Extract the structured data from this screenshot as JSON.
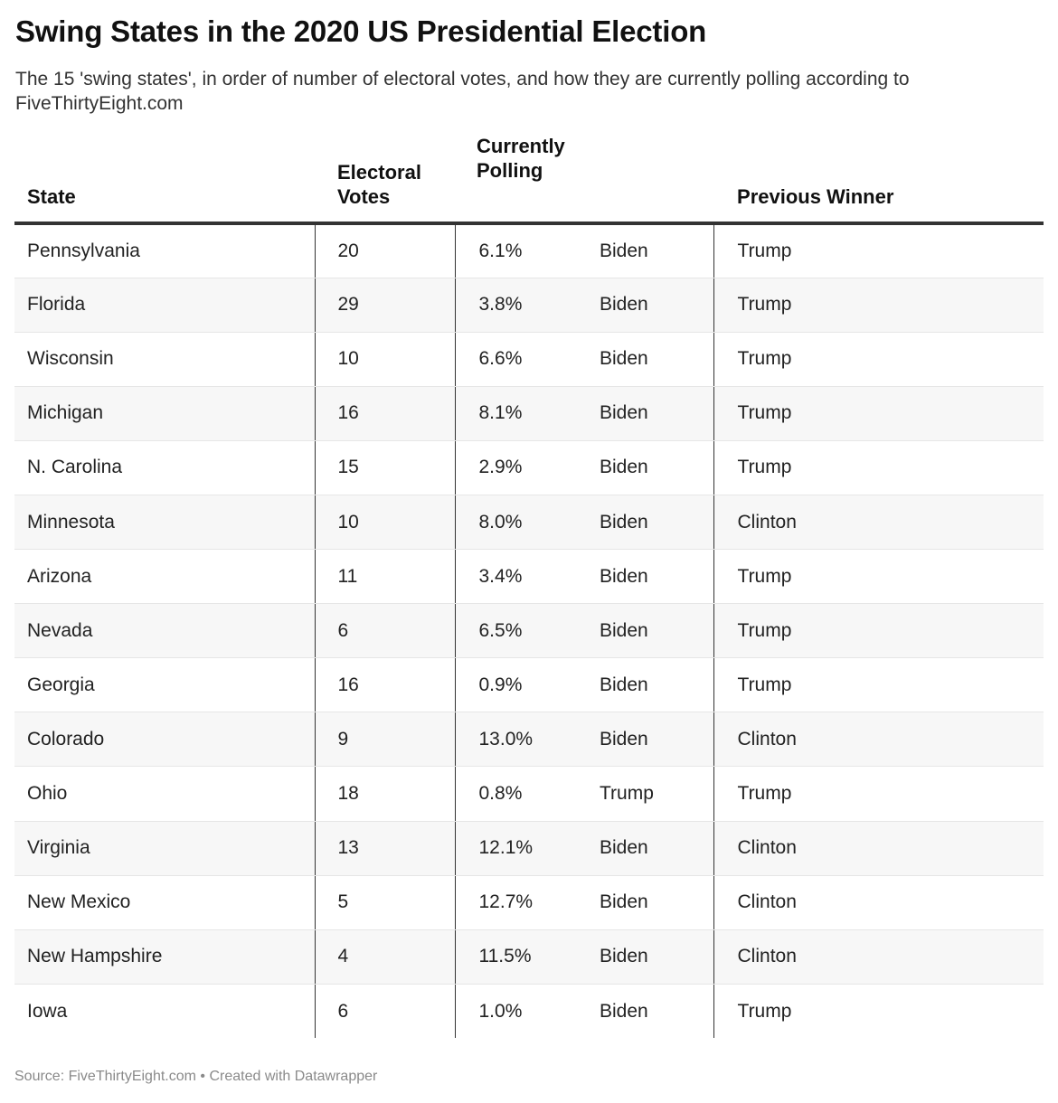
{
  "title": "Swing States in the 2020 US Presidential Election",
  "subtitle": "The 15 'swing states', in order of number of electoral votes, and how they are currently polling according to FiveThirtyEight.com",
  "footer": {
    "source_label": "Source: ",
    "source": "FiveThirtyEight.com",
    "separator": " • ",
    "credit": "Created with Datawrapper"
  },
  "chart_data": {
    "type": "table",
    "columns": {
      "state": "State",
      "votes_line1": "Electoral",
      "votes_line2": "Votes",
      "poll_line1": "Currently",
      "poll_line2": "Polling",
      "winner": "Previous Winner"
    },
    "rows": [
      {
        "state": "Pennsylvania",
        "votes": "20",
        "margin": "6.1%",
        "leader": "Biden",
        "previous": "Trump"
      },
      {
        "state": "Florida",
        "votes": "29",
        "margin": "3.8%",
        "leader": "Biden",
        "previous": "Trump"
      },
      {
        "state": "Wisconsin",
        "votes": "10",
        "margin": "6.6%",
        "leader": "Biden",
        "previous": "Trump"
      },
      {
        "state": "Michigan",
        "votes": "16",
        "margin": "8.1%",
        "leader": "Biden",
        "previous": "Trump"
      },
      {
        "state": "N. Carolina",
        "votes": "15",
        "margin": "2.9%",
        "leader": "Biden",
        "previous": "Trump"
      },
      {
        "state": "Minnesota",
        "votes": "10",
        "margin": "8.0%",
        "leader": "Biden",
        "previous": "Clinton"
      },
      {
        "state": "Arizona",
        "votes": "11",
        "margin": "3.4%",
        "leader": "Biden",
        "previous": "Trump"
      },
      {
        "state": "Nevada",
        "votes": "6",
        "margin": "6.5%",
        "leader": "Biden",
        "previous": "Trump"
      },
      {
        "state": "Georgia",
        "votes": "16",
        "margin": "0.9%",
        "leader": "Biden",
        "previous": "Trump"
      },
      {
        "state": "Colorado",
        "votes": "9",
        "margin": "13.0%",
        "leader": "Biden",
        "previous": "Clinton"
      },
      {
        "state": "Ohio",
        "votes": "18",
        "margin": "0.8%",
        "leader": "Trump",
        "previous": "Trump"
      },
      {
        "state": "Virginia",
        "votes": "13",
        "margin": "12.1%",
        "leader": "Biden",
        "previous": "Clinton"
      },
      {
        "state": "New Mexico",
        "votes": "5",
        "margin": "12.7%",
        "leader": "Biden",
        "previous": "Clinton"
      },
      {
        "state": "New Hampshire",
        "votes": "4",
        "margin": "11.5%",
        "leader": "Biden",
        "previous": "Clinton"
      },
      {
        "state": "Iowa",
        "votes": "6",
        "margin": "1.0%",
        "leader": "Biden",
        "previous": "Trump"
      }
    ]
  }
}
